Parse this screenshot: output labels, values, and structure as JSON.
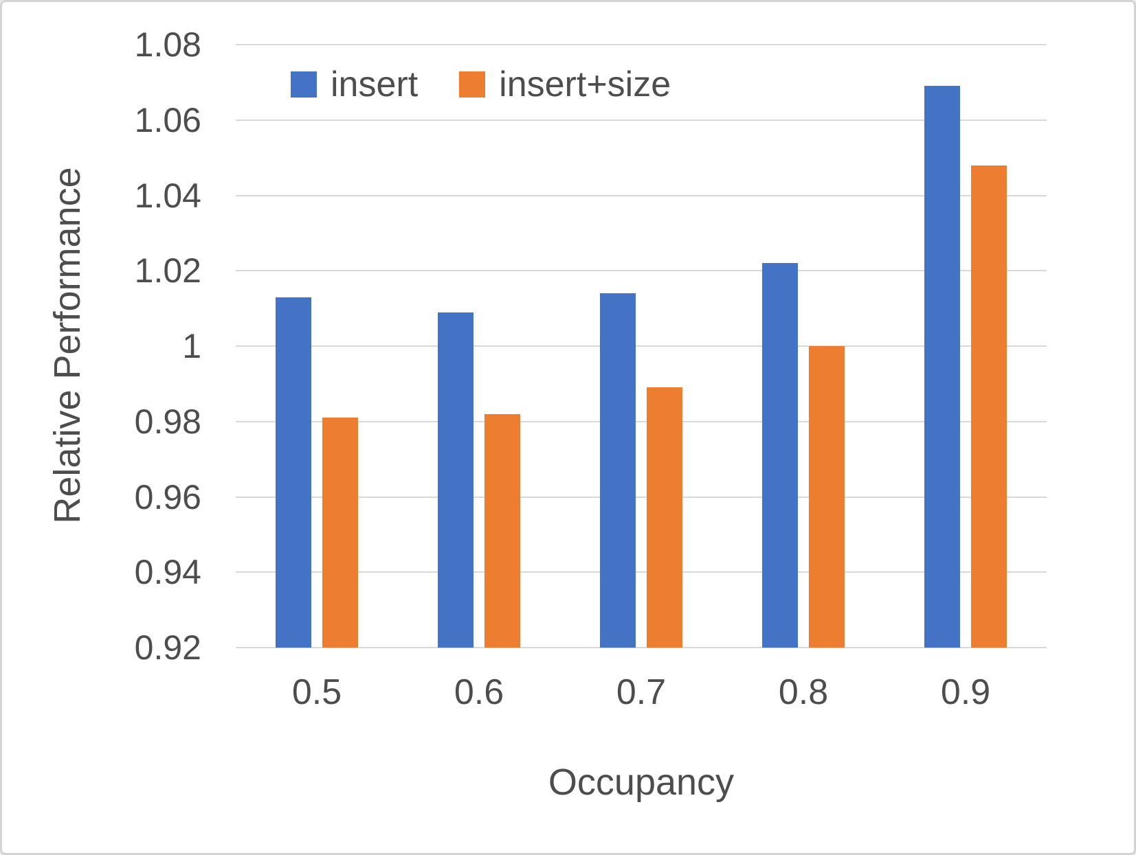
{
  "chart_data": {
    "type": "bar",
    "title": "",
    "xlabel": "Occupancy",
    "ylabel": "Relative Performance",
    "categories": [
      "0.5",
      "0.6",
      "0.7",
      "0.8",
      "0.9"
    ],
    "series": [
      {
        "name": "insert",
        "color": "#4472C4",
        "values": [
          1.013,
          1.009,
          1.014,
          1.022,
          1.069
        ]
      },
      {
        "name": "insert+size",
        "color": "#ED7D31",
        "values": [
          0.981,
          0.982,
          0.989,
          1.0,
          1.048
        ]
      }
    ],
    "ylim": [
      0.92,
      1.08
    ],
    "yticks": [
      0.92,
      0.94,
      0.96,
      0.98,
      1,
      1.02,
      1.04,
      1.06,
      1.08
    ],
    "ytick_labels": [
      "0.92",
      "0.94",
      "0.96",
      "0.98",
      "1",
      "1.02",
      "1.04",
      "1.06",
      "1.08"
    ],
    "grid": "horizontal",
    "legend_position": "top-inside"
  },
  "colors": {
    "grid": "#d9d9d9",
    "text": "#4d4d4d",
    "background": "#ffffff",
    "border": "#d4d4d4"
  }
}
